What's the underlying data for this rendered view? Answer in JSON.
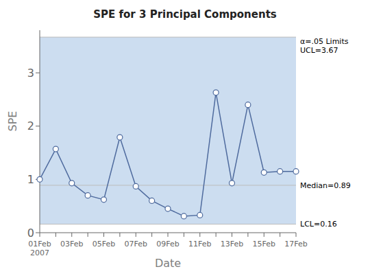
{
  "chart_data": {
    "type": "line",
    "title": "SPE for 3 Principal Components",
    "x_label": "Date",
    "y_label": "SPE",
    "categories": [
      "01Feb\n2007",
      null,
      "03Feb",
      null,
      "05Feb",
      null,
      "07Feb",
      null,
      "09Feb",
      null,
      "11Feb",
      null,
      "13Feb",
      null,
      "15Feb",
      null,
      "17Feb"
    ],
    "values": [
      1.0,
      1.57,
      0.93,
      0.7,
      0.62,
      1.79,
      0.87,
      0.6,
      0.45,
      0.31,
      0.33,
      2.63,
      0.93,
      2.4,
      1.13,
      1.15,
      1.15
    ],
    "color": "#4F6B9E",
    "marker": "open circle",
    "ylim": [
      0,
      3.8
    ],
    "yticks": [
      0,
      1,
      2,
      3
    ],
    "grid": false,
    "band": {
      "from": 0.16,
      "to": 3.67,
      "color": "#CCDDF0"
    },
    "annotations": [
      {
        "text": "α=.05 Limits\nUCL=3.67",
        "y": 3.67,
        "color": "#BBBBBB"
      },
      {
        "text": "Median=0.89",
        "y": 0.89,
        "color": "#BBBBBB"
      },
      {
        "text": "LCL=0.16",
        "y": 0.16,
        "color": "#BBBBBB"
      }
    ]
  }
}
